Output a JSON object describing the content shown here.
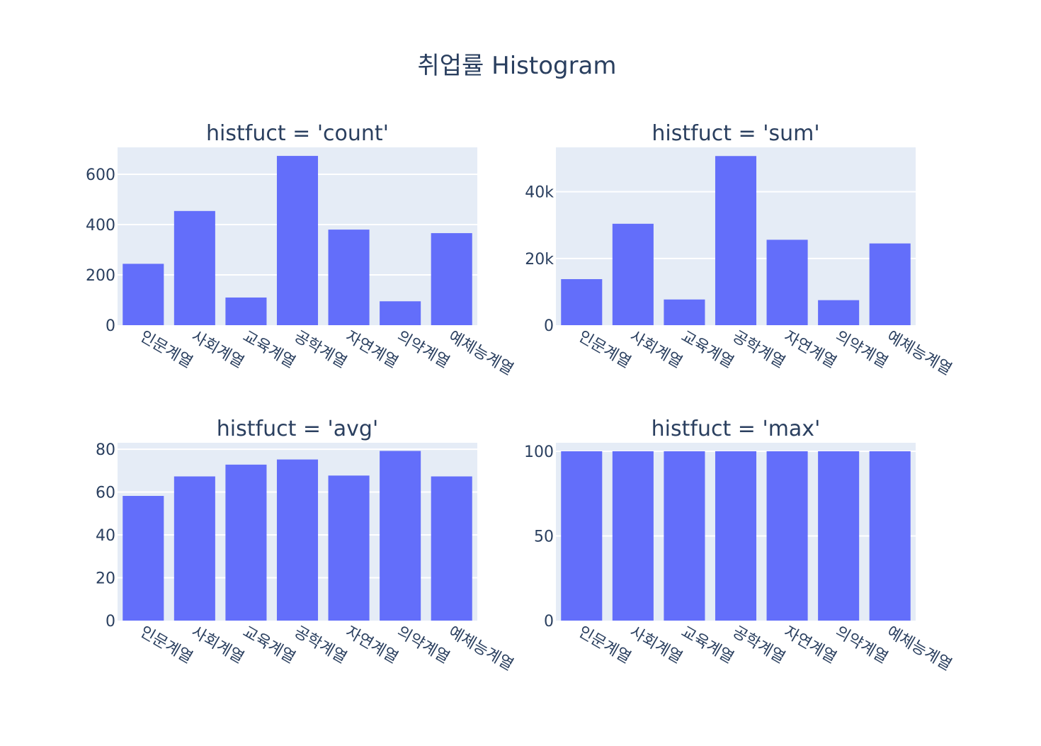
{
  "figure": {
    "title": "취업률 Histogram"
  },
  "chart_data": [
    {
      "type": "bar",
      "title": "histfuct = 'count'",
      "categories": [
        "인문계열",
        "사회계열",
        "교육계열",
        "공학계열",
        "자연계열",
        "의약계열",
        "예체능계열"
      ],
      "values": [
        244,
        454,
        110,
        673,
        380,
        95,
        366
      ],
      "ylim": [
        0,
        707
      ],
      "yticks": [
        0,
        200,
        400,
        600
      ],
      "ytick_labels": [
        "0",
        "200",
        "400",
        "600"
      ],
      "xlabel": "",
      "ylabel": "",
      "grid": true
    },
    {
      "type": "bar",
      "title": "histfuct = 'sum'",
      "categories": [
        "인문계열",
        "사회계열",
        "교육계열",
        "공학계열",
        "자연계열",
        "의약계열",
        "예체능계열"
      ],
      "values": [
        13800,
        30400,
        7700,
        50700,
        25600,
        7500,
        24500
      ],
      "ylim": [
        0,
        53300
      ],
      "yticks": [
        0,
        20000,
        40000
      ],
      "ytick_labels": [
        "0",
        "20k",
        "40k"
      ],
      "xlabel": "",
      "ylabel": "",
      "grid": true
    },
    {
      "type": "bar",
      "title": "histfuct = 'avg'",
      "categories": [
        "인문계열",
        "사회계열",
        "교육계열",
        "공학계열",
        "자연계열",
        "의약계열",
        "예체능계열"
      ],
      "values": [
        58.2,
        67.3,
        72.8,
        75.2,
        67.7,
        79.2,
        67.3
      ],
      "ylim": [
        0,
        83
      ],
      "yticks": [
        0,
        20,
        40,
        60,
        80
      ],
      "ytick_labels": [
        "0",
        "20",
        "40",
        "60",
        "80"
      ],
      "xlabel": "",
      "ylabel": "",
      "grid": true
    },
    {
      "type": "bar",
      "title": "histfuct = 'max'",
      "categories": [
        "인문계열",
        "사회계열",
        "교육계열",
        "공학계열",
        "자연계열",
        "의약계열",
        "예체능계열"
      ],
      "values": [
        100,
        100,
        100,
        100,
        100,
        100,
        100
      ],
      "ylim": [
        0,
        105
      ],
      "yticks": [
        0,
        50,
        100
      ],
      "ytick_labels": [
        "0",
        "50",
        "100"
      ],
      "xlabel": "",
      "ylabel": "",
      "grid": true
    }
  ]
}
